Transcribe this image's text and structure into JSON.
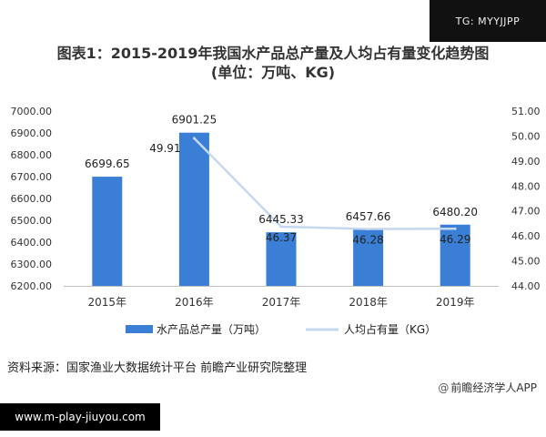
{
  "watermark_badge": "TG: MYYJJPP",
  "website_badge": "www.m-play-jiuyou.com",
  "source": "资料来源：国家渔业大数据统计平台 前瞻产业研究院整理",
  "credit": {
    "prefix": "@",
    "text": "前瞻经济学人APP"
  },
  "chart_data": {
    "type": "bar",
    "title": "图表1：2015-2019年我国水产品总产量及人均占有量变化趋势图",
    "subtitle": "(单位：万吨、KG)",
    "categories": [
      "2015年",
      "2016年",
      "2017年",
      "2018年",
      "2019年"
    ],
    "bar_series": {
      "name": "水产品总产量（万吨）",
      "values": [
        6699.65,
        6901.25,
        6445.33,
        6457.66,
        6480.2
      ],
      "labels": [
        "6699.65",
        "6901.25",
        "6445.33",
        "6457.66",
        "6480.20"
      ],
      "color": "#3a7fd5"
    },
    "line_series": {
      "name": "人均占有量（KG）",
      "x": [
        "2016年",
        "2017年",
        "2018年",
        "2019年"
      ],
      "values": [
        49.91,
        46.37,
        46.28,
        46.29
      ],
      "labels": [
        "49.91",
        "46.37",
        "46.28",
        "46.29"
      ],
      "color": "#c5d8ef"
    },
    "y_left": {
      "ylim": [
        6200,
        7000
      ],
      "ticks": [
        "6200.00",
        "6300.00",
        "6400.00",
        "6500.00",
        "6600.00",
        "6700.00",
        "6800.00",
        "6900.00",
        "7000.00"
      ]
    },
    "y_right": {
      "ylim": [
        44,
        51
      ],
      "ticks": [
        "44.00",
        "45.00",
        "46.00",
        "47.00",
        "48.00",
        "49.00",
        "50.00",
        "51.00"
      ]
    },
    "legend_position": "bottom",
    "grid": false
  }
}
